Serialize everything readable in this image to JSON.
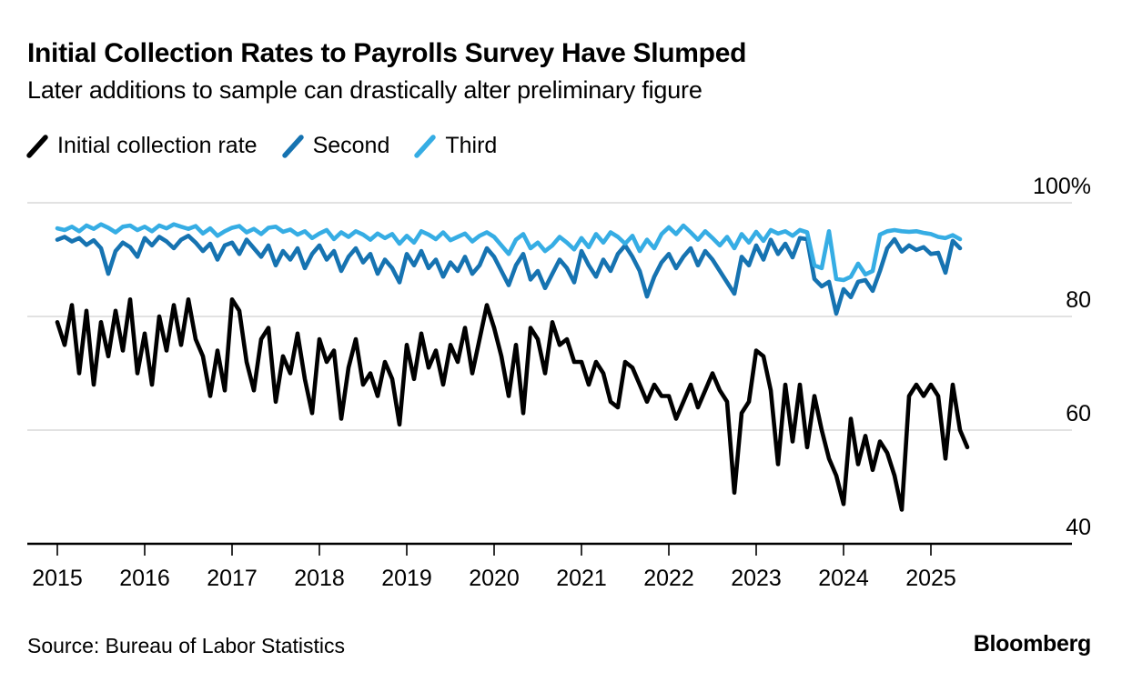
{
  "header": {
    "title": "Initial Collection Rates to Payrolls Survey Have Slumped",
    "subtitle": "Later additions to sample can drastically alter preliminary figure"
  },
  "legend": [
    {
      "label": "Initial collection rate",
      "color": "#000000"
    },
    {
      "label": "Second",
      "color": "#1673B1"
    },
    {
      "label": "Third",
      "color": "#36ADE4"
    }
  ],
  "footer": {
    "source": "Source: Bureau of Labor Statistics",
    "brand": "Bloomberg"
  },
  "colors": {
    "gridline": "#D8D8D8",
    "axis": "#000000",
    "background": "#FFFFFF"
  },
  "chart_data": {
    "type": "line",
    "title": "Initial Collection Rates to Payrolls Survey Have Slumped",
    "unit": "%",
    "x_start": "2015-01",
    "x_frequency": "monthly",
    "x_tick_labels": [
      "2015",
      "2016",
      "2017",
      "2018",
      "2019",
      "2020",
      "2021",
      "2022",
      "2023",
      "2024",
      "2025"
    ],
    "y_axis": {
      "ticks": [
        100,
        80,
        60,
        40
      ],
      "tick_labels": [
        "100%",
        "80",
        "60",
        "40"
      ],
      "range_shown": [
        40,
        100
      ],
      "grid": true,
      "side": "right"
    },
    "legend_position": "top-left",
    "series": [
      {
        "name": "Initial collection rate",
        "color": "#000000",
        "values": [
          79,
          75,
          82,
          70,
          81,
          68,
          79,
          73,
          81,
          74,
          83,
          70,
          77,
          68,
          80,
          74,
          82,
          75,
          83,
          76,
          73,
          66,
          74,
          67,
          83,
          81,
          72,
          67,
          76,
          78,
          65,
          73,
          70,
          77,
          69,
          63,
          76,
          72,
          74,
          62,
          71,
          76,
          68,
          70,
          66,
          72,
          69,
          61,
          75,
          69,
          77,
          71,
          74,
          68,
          75,
          72,
          78,
          70,
          76,
          82,
          78,
          73,
          66,
          75,
          63,
          78,
          76,
          70,
          79,
          75,
          76,
          72,
          72,
          68,
          72,
          70,
          65,
          64,
          72,
          71,
          68,
          65,
          68,
          66,
          66,
          62,
          65,
          68,
          64,
          67,
          70,
          67,
          65,
          49,
          63,
          65,
          74,
          73,
          67,
          54,
          68,
          58,
          68,
          57,
          66,
          60,
          55,
          52,
          47,
          62,
          54,
          59,
          53,
          58,
          56,
          52,
          46,
          66,
          68,
          66,
          68,
          66,
          55,
          68,
          60,
          57
        ]
      },
      {
        "name": "Second",
        "color": "#1673B1",
        "values": [
          93.5,
          94,
          93.2,
          93.8,
          92.6,
          93.4,
          92,
          87.5,
          91.5,
          93,
          92.2,
          90.5,
          93.8,
          92.5,
          94,
          93.2,
          92,
          93.5,
          94.2,
          93,
          91.5,
          92.8,
          90,
          92.5,
          93,
          91,
          93.5,
          92,
          90.5,
          92.5,
          89,
          91.5,
          90,
          92,
          88.5,
          91,
          92.5,
          90,
          91.5,
          88,
          90.5,
          92,
          89.5,
          91,
          87.5,
          90,
          88.5,
          86,
          91,
          89,
          91.5,
          88.5,
          90,
          87,
          89.5,
          88,
          90.5,
          87.5,
          89,
          92,
          90.5,
          88,
          85.5,
          89,
          91,
          86.5,
          88,
          85,
          87.5,
          90,
          88.5,
          86,
          91.5,
          89,
          87,
          90,
          88,
          91,
          92.5,
          90.5,
          88,
          83.5,
          87,
          89.5,
          91,
          88.5,
          90.5,
          92,
          89,
          91.5,
          90,
          88,
          86,
          84,
          90.5,
          89,
          92.5,
          90,
          93.5,
          91,
          92.8,
          90.4,
          93.8,
          93.6,
          86.6,
          85.3,
          86.1,
          80.5,
          84.8,
          83.4,
          86.1,
          86.4,
          84.5,
          88,
          92,
          93.6,
          91.4,
          92.5,
          91.7,
          92.2,
          91,
          91.2,
          87.7,
          93.3,
          92
        ]
      },
      {
        "name": "Third",
        "color": "#36ADE4",
        "values": [
          95.5,
          95.2,
          95.8,
          95,
          96,
          95.4,
          96.2,
          95.6,
          94.8,
          95.8,
          96,
          95.2,
          95.8,
          95,
          96,
          95.5,
          96.2,
          95.8,
          95.4,
          95.9,
          94.6,
          95.5,
          94.2,
          95,
          95.6,
          95.9,
          94.8,
          95.4,
          94.5,
          95.6,
          95.8,
          94.9,
          95.3,
          94.4,
          95,
          93.8,
          94.6,
          95.2,
          93.6,
          94.8,
          94,
          95,
          94.4,
          93.5,
          94.6,
          93.8,
          94.5,
          92.8,
          94.2,
          93,
          95,
          94.4,
          93.6,
          94.8,
          93.4,
          94,
          94.6,
          93.2,
          94.2,
          94.8,
          94,
          92.5,
          91,
          93.5,
          94.5,
          92,
          93,
          91.5,
          92.5,
          94,
          93,
          91.8,
          93.8,
          92.2,
          94.5,
          93,
          94.8,
          94,
          92.8,
          94.2,
          91.5,
          93.5,
          92,
          94.5,
          95.7,
          94.5,
          96,
          94.8,
          93.5,
          95,
          93.8,
          92.5,
          94,
          92,
          94.5,
          93,
          94.9,
          93.3,
          95.2,
          94.6,
          95,
          94.2,
          95.2,
          94.8,
          89,
          88.5,
          95,
          86.6,
          86.4,
          87,
          89.3,
          87.4,
          88,
          94.4,
          95,
          95.2,
          95,
          94.9,
          95,
          94.7,
          94.5,
          94,
          93.8,
          94.3,
          93.6
        ]
      }
    ]
  }
}
